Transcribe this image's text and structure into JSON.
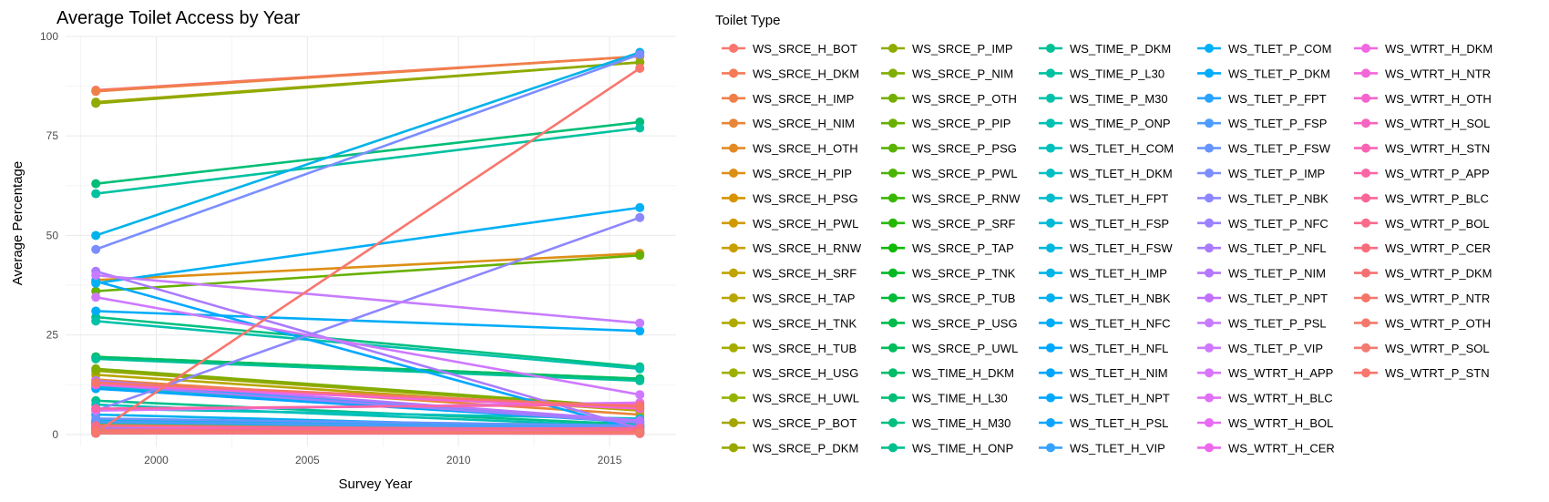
{
  "chart_data": {
    "type": "line",
    "title": "Average Toilet Access by Year",
    "xlabel": "Survey Year",
    "ylabel": "Average Percentage",
    "x": [
      1998,
      2016
    ],
    "xlim": [
      1997,
      2017.2
    ],
    "ylim": [
      -3,
      100
    ],
    "xticks": [
      2000,
      2005,
      2010,
      2015
    ],
    "yticks": [
      0,
      25,
      50,
      75,
      100
    ],
    "grid": true,
    "legend_title": "Toilet Type",
    "legend_position": "right",
    "series": [
      {
        "name": "WS_SRCE_H_BOT",
        "color": "#F8766D",
        "values": [
          86.5,
          95
        ]
      },
      {
        "name": "WS_SRCE_H_DKM",
        "color": "#F47A58",
        "values": [
          1.0,
          3.0
        ]
      },
      {
        "name": "WS_SRCE_H_IMP",
        "color": "#EF7F49",
        "values": [
          86.2,
          95
        ]
      },
      {
        "name": "WS_SRCE_H_NIM",
        "color": "#E98538",
        "values": [
          13.8,
          5.0
        ]
      },
      {
        "name": "WS_SRCE_H_OTH",
        "color": "#E48A25",
        "values": [
          0.5,
          0.5
        ]
      },
      {
        "name": "WS_SRCE_H_PIP",
        "color": "#DD8F15",
        "values": [
          38.8,
          45.5
        ]
      },
      {
        "name": "WS_SRCE_H_PSG",
        "color": "#D79400",
        "values": [
          1.5,
          2.0
        ]
      },
      {
        "name": "WS_SRCE_H_PWL",
        "color": "#D09900",
        "values": [
          2.5,
          2.0
        ]
      },
      {
        "name": "WS_SRCE_H_RNW",
        "color": "#C89E00",
        "values": [
          0.3,
          0.5
        ]
      },
      {
        "name": "WS_SRCE_H_SRF",
        "color": "#C0A200",
        "values": [
          2.0,
          0.5
        ]
      },
      {
        "name": "WS_SRCE_H_TAP",
        "color": "#B8A600",
        "values": [
          15.0,
          6.0
        ]
      },
      {
        "name": "WS_SRCE_H_TNK",
        "color": "#AFA900",
        "values": [
          0.8,
          1.5
        ]
      },
      {
        "name": "WS_SRCE_H_TUB",
        "color": "#A6AD00",
        "values": [
          3.0,
          2.0
        ]
      },
      {
        "name": "WS_SRCE_H_USG",
        "color": "#9DB000",
        "values": [
          1.0,
          0.8
        ]
      },
      {
        "name": "WS_SRCE_H_UWL",
        "color": "#94B300",
        "values": [
          0.5,
          0.3
        ]
      },
      {
        "name": "WS_SRCE_P_BOT",
        "color": "#A3A500",
        "values": [
          83.5,
          93.5
        ]
      },
      {
        "name": "WS_SRCE_P_DKM",
        "color": "#98A800",
        "values": [
          16.0,
          6.5
        ]
      },
      {
        "name": "WS_SRCE_P_IMP",
        "color": "#8DAB00",
        "values": [
          83.2,
          93.5
        ]
      },
      {
        "name": "WS_SRCE_P_NIM",
        "color": "#81AD00",
        "values": [
          16.5,
          6.8
        ]
      },
      {
        "name": "WS_SRCE_P_OTH",
        "color": "#74AF00",
        "values": [
          0.5,
          0.4
        ]
      },
      {
        "name": "WS_SRCE_P_PIP",
        "color": "#67B100",
        "values": [
          36.0,
          45.0
        ]
      },
      {
        "name": "WS_SRCE_P_PSG",
        "color": "#59B300",
        "values": [
          1.8,
          2.2
        ]
      },
      {
        "name": "WS_SRCE_P_PWL",
        "color": "#4AB400",
        "values": [
          3.0,
          2.5
        ]
      },
      {
        "name": "WS_SRCE_P_RNW",
        "color": "#39B600",
        "values": [
          0.3,
          0.5
        ]
      },
      {
        "name": "WS_SRCE_P_SRF",
        "color": "#26B700",
        "values": [
          2.2,
          0.6
        ]
      },
      {
        "name": "WS_SRCE_P_TAP",
        "color": "#10B800",
        "values": [
          19.5,
          14.0
        ]
      },
      {
        "name": "WS_SRCE_P_TNK",
        "color": "#00B921",
        "values": [
          1.0,
          1.8
        ]
      },
      {
        "name": "WS_SRCE_P_TUB",
        "color": "#00BA38",
        "values": [
          3.5,
          2.2
        ]
      },
      {
        "name": "WS_SRCE_P_USG",
        "color": "#00BB4B",
        "values": [
          1.2,
          1.0
        ]
      },
      {
        "name": "WS_SRCE_P_UWL",
        "color": "#00BC5A",
        "values": [
          0.6,
          0.4
        ]
      },
      {
        "name": "WS_TIME_H_DKM",
        "color": "#00BD68",
        "values": [
          19.5,
          14.0
        ]
      },
      {
        "name": "WS_TIME_H_L30",
        "color": "#00BE75",
        "values": [
          63.0,
          78.5
        ]
      },
      {
        "name": "WS_TIME_H_M30",
        "color": "#00BF81",
        "values": [
          29.5,
          17.0
        ]
      },
      {
        "name": "WS_TIME_H_ONP",
        "color": "#00C08C",
        "values": [
          8.5,
          2.5
        ]
      },
      {
        "name": "WS_TIME_P_DKM",
        "color": "#00C096",
        "values": [
          19.0,
          13.5
        ]
      },
      {
        "name": "WS_TIME_P_L30",
        "color": "#00C1A0",
        "values": [
          60.5,
          77.0
        ]
      },
      {
        "name": "WS_TIME_P_M30",
        "color": "#00C1AA",
        "values": [
          28.5,
          16.5
        ]
      },
      {
        "name": "WS_TIME_P_ONP",
        "color": "#00C0B4",
        "values": [
          7.5,
          2.0
        ]
      },
      {
        "name": "WS_TLET_H_COM",
        "color": "#00C0BE",
        "values": [
          6.5,
          4.0
        ]
      },
      {
        "name": "WS_TLET_H_DKM",
        "color": "#00BFC4",
        "values": [
          0.5,
          0.3
        ]
      },
      {
        "name": "WS_TLET_H_FPT",
        "color": "#00BCCD",
        "values": [
          12.0,
          3.0
        ]
      },
      {
        "name": "WS_TLET_H_FSP",
        "color": "#00BAD6",
        "values": [
          3.0,
          1.5
        ]
      },
      {
        "name": "WS_TLET_H_FSW",
        "color": "#00B7DF",
        "values": [
          3.5,
          2.0
        ]
      },
      {
        "name": "WS_TLET_H_IMP",
        "color": "#00B3E8",
        "values": [
          50.0,
          96.0
        ]
      },
      {
        "name": "WS_TLET_H_NBK",
        "color": "#00B0F0",
        "values": [
          5.0,
          1.5
        ]
      },
      {
        "name": "WS_TLET_H_NFC",
        "color": "#00ACF7",
        "values": [
          31.0,
          26.0
        ]
      },
      {
        "name": "WS_TLET_H_NFL",
        "color": "#00A8FF",
        "values": [
          38.5,
          1.0
        ]
      },
      {
        "name": "WS_TLET_H_NIM",
        "color": "#00A5FF",
        "values": [
          11.5,
          3.0
        ]
      },
      {
        "name": "WS_TLET_H_NPT",
        "color": "#00A9FF",
        "values": [
          1.0,
          0.5
        ]
      },
      {
        "name": "WS_TLET_H_PSL",
        "color": "#0BA4FF",
        "values": [
          2.0,
          1.0
        ]
      },
      {
        "name": "WS_TLET_H_VIP",
        "color": "#35A2FF",
        "values": [
          1.5,
          0.5
        ]
      },
      {
        "name": "WS_TLET_P_COM",
        "color": "#00B0F6",
        "values": [
          38.0,
          57.0
        ]
      },
      {
        "name": "WS_TLET_P_DKM",
        "color": "#00ACFC",
        "values": [
          0.6,
          0.3
        ]
      },
      {
        "name": "WS_TLET_P_FPT",
        "color": "#29A3FF",
        "values": [
          13.0,
          3.5
        ]
      },
      {
        "name": "WS_TLET_P_FSP",
        "color": "#4D9CFF",
        "values": [
          3.2,
          1.6
        ]
      },
      {
        "name": "WS_TLET_P_FSW",
        "color": "#6794FF",
        "values": [
          4.0,
          2.2
        ]
      },
      {
        "name": "WS_TLET_P_IMP",
        "color": "#7B8EFF",
        "values": [
          46.5,
          95.5
        ]
      },
      {
        "name": "WS_TLET_P_NBK",
        "color": "#8D87FF",
        "values": [
          6.0,
          54.5
        ]
      },
      {
        "name": "WS_TLET_P_NFC",
        "color": "#9C81FF",
        "values": [
          12.5,
          3.0
        ]
      },
      {
        "name": "WS_TLET_P_NFL",
        "color": "#A97BFF",
        "values": [
          41.0,
          1.5
        ]
      },
      {
        "name": "WS_TLET_P_NIM",
        "color": "#B577FF",
        "values": [
          13.5,
          3.5
        ]
      },
      {
        "name": "WS_TLET_P_NPT",
        "color": "#C06FFF",
        "values": [
          1.2,
          0.6
        ]
      },
      {
        "name": "WS_TLET_P_PSL",
        "color": "#C77CFF",
        "values": [
          40.0,
          28.0
        ]
      },
      {
        "name": "WS_TLET_P_VIP",
        "color": "#CF78FF",
        "values": [
          34.5,
          10.0
        ]
      },
      {
        "name": "WS_WTRT_H_APP",
        "color": "#D874FD",
        "values": [
          6.0,
          8.0
        ]
      },
      {
        "name": "WS_WTRT_H_BLC",
        "color": "#E070F5",
        "values": [
          1.0,
          1.5
        ]
      },
      {
        "name": "WS_WTRT_H_BOL",
        "color": "#E76BF3",
        "values": [
          2.0,
          1.0
        ]
      },
      {
        "name": "WS_WTRT_H_CER",
        "color": "#ED68ED",
        "values": [
          0.5,
          0.3
        ]
      },
      {
        "name": "WS_WTRT_H_DKM",
        "color": "#F066E3",
        "values": [
          0.8,
          0.5
        ]
      },
      {
        "name": "WS_WTRT_H_NTR",
        "color": "#F365D8",
        "values": [
          12.5,
          6.5
        ]
      },
      {
        "name": "WS_WTRT_H_OTH",
        "color": "#F564CC",
        "values": [
          0.6,
          0.4
        ]
      },
      {
        "name": "WS_WTRT_H_SOL",
        "color": "#F764BF",
        "values": [
          0.3,
          0.2
        ]
      },
      {
        "name": "WS_WTRT_H_STN",
        "color": "#F864B2",
        "values": [
          0.5,
          0.3
        ]
      },
      {
        "name": "WS_WTRT_P_APP",
        "color": "#F965A5",
        "values": [
          6.5,
          7.5
        ]
      },
      {
        "name": "WS_WTRT_P_BLC",
        "color": "#F96798",
        "values": [
          1.2,
          1.6
        ]
      },
      {
        "name": "WS_WTRT_P_BOL",
        "color": "#F96A8B",
        "values": [
          2.2,
          1.2
        ]
      },
      {
        "name": "WS_WTRT_P_CER",
        "color": "#F86D7E",
        "values": [
          0.6,
          0.4
        ]
      },
      {
        "name": "WS_WTRT_P_DKM",
        "color": "#F77172",
        "values": [
          1.0,
          0.6
        ]
      },
      {
        "name": "WS_WTRT_P_NTR",
        "color": "#F57568",
        "values": [
          13.0,
          7.0
        ]
      },
      {
        "name": "WS_WTRT_P_OTH",
        "color": "#F4786A",
        "values": [
          0.7,
          0.5
        ]
      },
      {
        "name": "WS_WTRT_P_SOL",
        "color": "#F37A6F",
        "values": [
          0.4,
          0.3
        ]
      },
      {
        "name": "WS_WTRT_P_STN",
        "color": "#F8766D",
        "values": [
          0.5,
          92.0
        ]
      }
    ]
  }
}
